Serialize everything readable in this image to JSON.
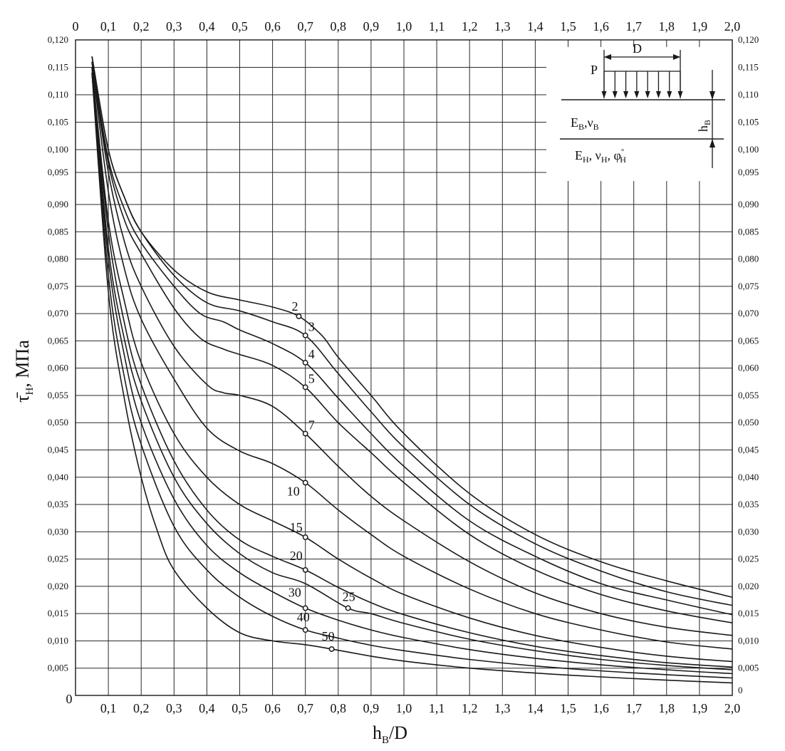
{
  "chart_data": {
    "type": "line",
    "title": "",
    "xlabel": "h_В/D",
    "ylabel": "τ̄_Н, МПа",
    "xlim": [
      0,
      2.0
    ],
    "ylim": [
      0,
      0.12
    ],
    "grid": true,
    "x_ticks": [
      0,
      0.1,
      0.2,
      0.3,
      0.4,
      0.5,
      0.6,
      0.7,
      0.8,
      0.9,
      1.0,
      1.1,
      1.2,
      1.3,
      1.4,
      1.5,
      1.6,
      1.7,
      1.8,
      1.9,
      2.0
    ],
    "x_tick_labels": [
      "0",
      "0,1",
      "0,2",
      "0,3",
      "0,4",
      "0,5",
      "0,6",
      "0,7",
      "0,8",
      "0,9",
      "1,0",
      "1,1",
      "1,2",
      "1,3",
      "1,4",
      "1,5",
      "1,6",
      "1,7",
      "1,8",
      "1,9",
      "2,0"
    ],
    "y_ticks": [
      0,
      0.005,
      0.01,
      0.015,
      0.02,
      0.025,
      0.03,
      0.035,
      0.04,
      0.045,
      0.05,
      0.055,
      0.06,
      0.065,
      0.07,
      0.075,
      0.08,
      0.085,
      0.09,
      0.095,
      0.1,
      0.105,
      0.11,
      0.115,
      0.12
    ],
    "y_tick_labels": [
      "0",
      "0,005",
      "0,010",
      "0,015",
      "0,020",
      "0,025",
      "0,030",
      "0,035",
      "0,040",
      "0,045",
      "0,050",
      "0,055",
      "0,060",
      "0,065",
      "0,070",
      "0,075",
      "0,080",
      "0,085",
      "0,090",
      "0,095",
      "0,100",
      "0,105",
      "0,110",
      "0,115",
      "0,120"
    ],
    "series": [
      {
        "name": "2",
        "label_at": [
          0.68,
          0.0695
        ],
        "x": [
          0.05,
          0.1,
          0.15,
          0.2,
          0.3,
          0.4,
          0.5,
          0.6,
          0.68,
          0.75,
          0.8,
          0.9,
          1.0,
          1.2,
          1.4,
          1.6,
          1.8,
          2.0
        ],
        "y": [
          0.117,
          0.1,
          0.091,
          0.085,
          0.078,
          0.074,
          0.0725,
          0.0712,
          0.0695,
          0.066,
          0.062,
          0.055,
          0.048,
          0.037,
          0.0295,
          0.0245,
          0.021,
          0.018
        ]
      },
      {
        "name": "3",
        "label_at": [
          0.7,
          0.066
        ],
        "x": [
          0.05,
          0.1,
          0.15,
          0.2,
          0.3,
          0.4,
          0.5,
          0.6,
          0.7,
          0.8,
          0.9,
          1.0,
          1.2,
          1.4,
          1.6,
          1.8,
          2.0
        ],
        "y": [
          0.117,
          0.1,
          0.091,
          0.085,
          0.077,
          0.072,
          0.0705,
          0.0685,
          0.066,
          0.059,
          0.052,
          0.0455,
          0.035,
          0.0278,
          0.0228,
          0.019,
          0.0165
        ]
      },
      {
        "name": "4",
        "label_at": [
          0.7,
          0.061
        ],
        "x": [
          0.05,
          0.1,
          0.15,
          0.2,
          0.3,
          0.38,
          0.45,
          0.5,
          0.6,
          0.7,
          0.8,
          0.9,
          1.0,
          1.2,
          1.4,
          1.6,
          1.8,
          2.0
        ],
        "y": [
          0.116,
          0.098,
          0.089,
          0.083,
          0.075,
          0.07,
          0.0685,
          0.067,
          0.0645,
          0.061,
          0.0545,
          0.048,
          0.042,
          0.032,
          0.0255,
          0.0205,
          0.0175,
          0.0148
        ]
      },
      {
        "name": "5",
        "label_at": [
          0.7,
          0.0565
        ],
        "x": [
          0.05,
          0.1,
          0.15,
          0.2,
          0.3,
          0.38,
          0.45,
          0.5,
          0.6,
          0.7,
          0.8,
          0.9,
          1.0,
          1.2,
          1.4,
          1.6,
          1.8,
          2.0
        ],
        "y": [
          0.116,
          0.097,
          0.087,
          0.081,
          0.071,
          0.0655,
          0.0635,
          0.0625,
          0.0605,
          0.0565,
          0.05,
          0.0445,
          0.039,
          0.0295,
          0.023,
          0.0185,
          0.0155,
          0.0133
        ]
      },
      {
        "name": "7",
        "label_at": [
          0.7,
          0.048
        ],
        "x": [
          0.05,
          0.1,
          0.15,
          0.2,
          0.3,
          0.4,
          0.45,
          0.5,
          0.6,
          0.7,
          0.8,
          0.9,
          1.0,
          1.2,
          1.4,
          1.6,
          1.8,
          2.0
        ],
        "y": [
          0.116,
          0.095,
          0.083,
          0.075,
          0.064,
          0.057,
          0.0555,
          0.055,
          0.053,
          0.048,
          0.042,
          0.0365,
          0.032,
          0.0245,
          0.0188,
          0.015,
          0.0125,
          0.011
        ]
      },
      {
        "name": "10",
        "label_at": [
          0.7,
          0.039
        ],
        "x": [
          0.05,
          0.1,
          0.15,
          0.2,
          0.3,
          0.4,
          0.5,
          0.6,
          0.7,
          0.8,
          0.9,
          1.0,
          1.2,
          1.4,
          1.6,
          1.8,
          2.0
        ],
        "y": [
          0.116,
          0.092,
          0.078,
          0.069,
          0.058,
          0.049,
          0.0448,
          0.0425,
          0.039,
          0.034,
          0.0295,
          0.0255,
          0.0195,
          0.015,
          0.012,
          0.0098,
          0.0085
        ]
      },
      {
        "name": "15",
        "label_at": [
          0.7,
          0.029
        ],
        "x": [
          0.05,
          0.1,
          0.15,
          0.2,
          0.3,
          0.4,
          0.5,
          0.6,
          0.7,
          0.8,
          0.9,
          1.0,
          1.2,
          1.4,
          1.6,
          1.8,
          2.0
        ],
        "y": [
          0.115,
          0.087,
          0.072,
          0.061,
          0.048,
          0.04,
          0.035,
          0.032,
          0.029,
          0.025,
          0.0215,
          0.0185,
          0.0142,
          0.011,
          0.0088,
          0.0072,
          0.0062
        ]
      },
      {
        "name": "20",
        "label_at": [
          0.7,
          0.023
        ],
        "x": [
          0.05,
          0.1,
          0.15,
          0.2,
          0.3,
          0.4,
          0.5,
          0.6,
          0.7,
          0.8,
          0.9,
          1.0,
          1.2,
          1.4,
          1.6,
          1.8,
          2.0
        ],
        "y": [
          0.115,
          0.085,
          0.068,
          0.057,
          0.043,
          0.034,
          0.0285,
          0.0255,
          0.023,
          0.0198,
          0.017,
          0.0148,
          0.0115,
          0.009,
          0.0073,
          0.006,
          0.0052
        ]
      },
      {
        "name": "25",
        "label_at": [
          0.83,
          0.016
        ],
        "x": [
          0.05,
          0.1,
          0.15,
          0.2,
          0.3,
          0.4,
          0.5,
          0.6,
          0.7,
          0.83,
          0.9,
          1.0,
          1.2,
          1.4,
          1.6,
          1.8,
          2.0
        ],
        "y": [
          0.115,
          0.082,
          0.065,
          0.054,
          0.04,
          0.0315,
          0.026,
          0.0225,
          0.0205,
          0.016,
          0.015,
          0.0132,
          0.0103,
          0.0082,
          0.0066,
          0.0055,
          0.0047
        ]
      },
      {
        "name": "30",
        "label_at": [
          0.7,
          0.016
        ],
        "x": [
          0.05,
          0.1,
          0.15,
          0.2,
          0.3,
          0.4,
          0.5,
          0.6,
          0.7,
          0.8,
          0.9,
          1.0,
          1.2,
          1.4,
          1.6,
          1.8,
          2.0
        ],
        "y": [
          0.114,
          0.08,
          0.062,
          0.05,
          0.036,
          0.0275,
          0.0225,
          0.019,
          0.016,
          0.0138,
          0.012,
          0.0106,
          0.0084,
          0.0068,
          0.0056,
          0.0047,
          0.004
        ]
      },
      {
        "name": "40",
        "label_at": [
          0.7,
          0.012
        ],
        "x": [
          0.05,
          0.1,
          0.15,
          0.2,
          0.3,
          0.4,
          0.5,
          0.6,
          0.7,
          0.8,
          0.9,
          1.0,
          1.2,
          1.4,
          1.6,
          1.8,
          2.0
        ],
        "y": [
          0.114,
          0.077,
          0.058,
          0.046,
          0.031,
          0.023,
          0.018,
          0.0145,
          0.012,
          0.0105,
          0.0092,
          0.0082,
          0.0066,
          0.0054,
          0.0045,
          0.0038,
          0.0032
        ]
      },
      {
        "name": "50",
        "label_at": [
          0.78,
          0.0085
        ],
        "x": [
          0.05,
          0.1,
          0.15,
          0.2,
          0.25,
          0.3,
          0.4,
          0.5,
          0.6,
          0.7,
          0.78,
          0.9,
          1.0,
          1.2,
          1.4,
          1.6,
          1.8,
          2.0
        ],
        "y": [
          0.114,
          0.074,
          0.054,
          0.04,
          0.03,
          0.023,
          0.016,
          0.0115,
          0.01,
          0.0093,
          0.0085,
          0.0072,
          0.0063,
          0.005,
          0.0041,
          0.0034,
          0.0028,
          0.0023
        ]
      }
    ]
  },
  "inset": {
    "load_label": "P",
    "diameter_label": "D",
    "thickness_label": "h",
    "thickness_sub": "В",
    "upper_layer": {
      "E": "E",
      "E_sub": "В",
      "sep": ",",
      "nu": "ν",
      "nu_sub": "В"
    },
    "lower_layer": {
      "E": "E",
      "E_sub": "Н",
      "sep1": ", ",
      "nu": "ν",
      "nu_sub": "Н",
      "sep2": ", ",
      "phi": "φ",
      "phi_sub": "Н",
      "phi_sup": "°"
    }
  },
  "axis_titles": {
    "x_main": "h",
    "x_sub": "В",
    "x_rest": "/D",
    "y_main": "τ̄",
    "y_sub": "Н",
    "y_rest": ", МПа"
  },
  "colors": {
    "ink": "#1a1a1a",
    "grid": "#2a2a2a",
    "background": "#ffffff"
  }
}
